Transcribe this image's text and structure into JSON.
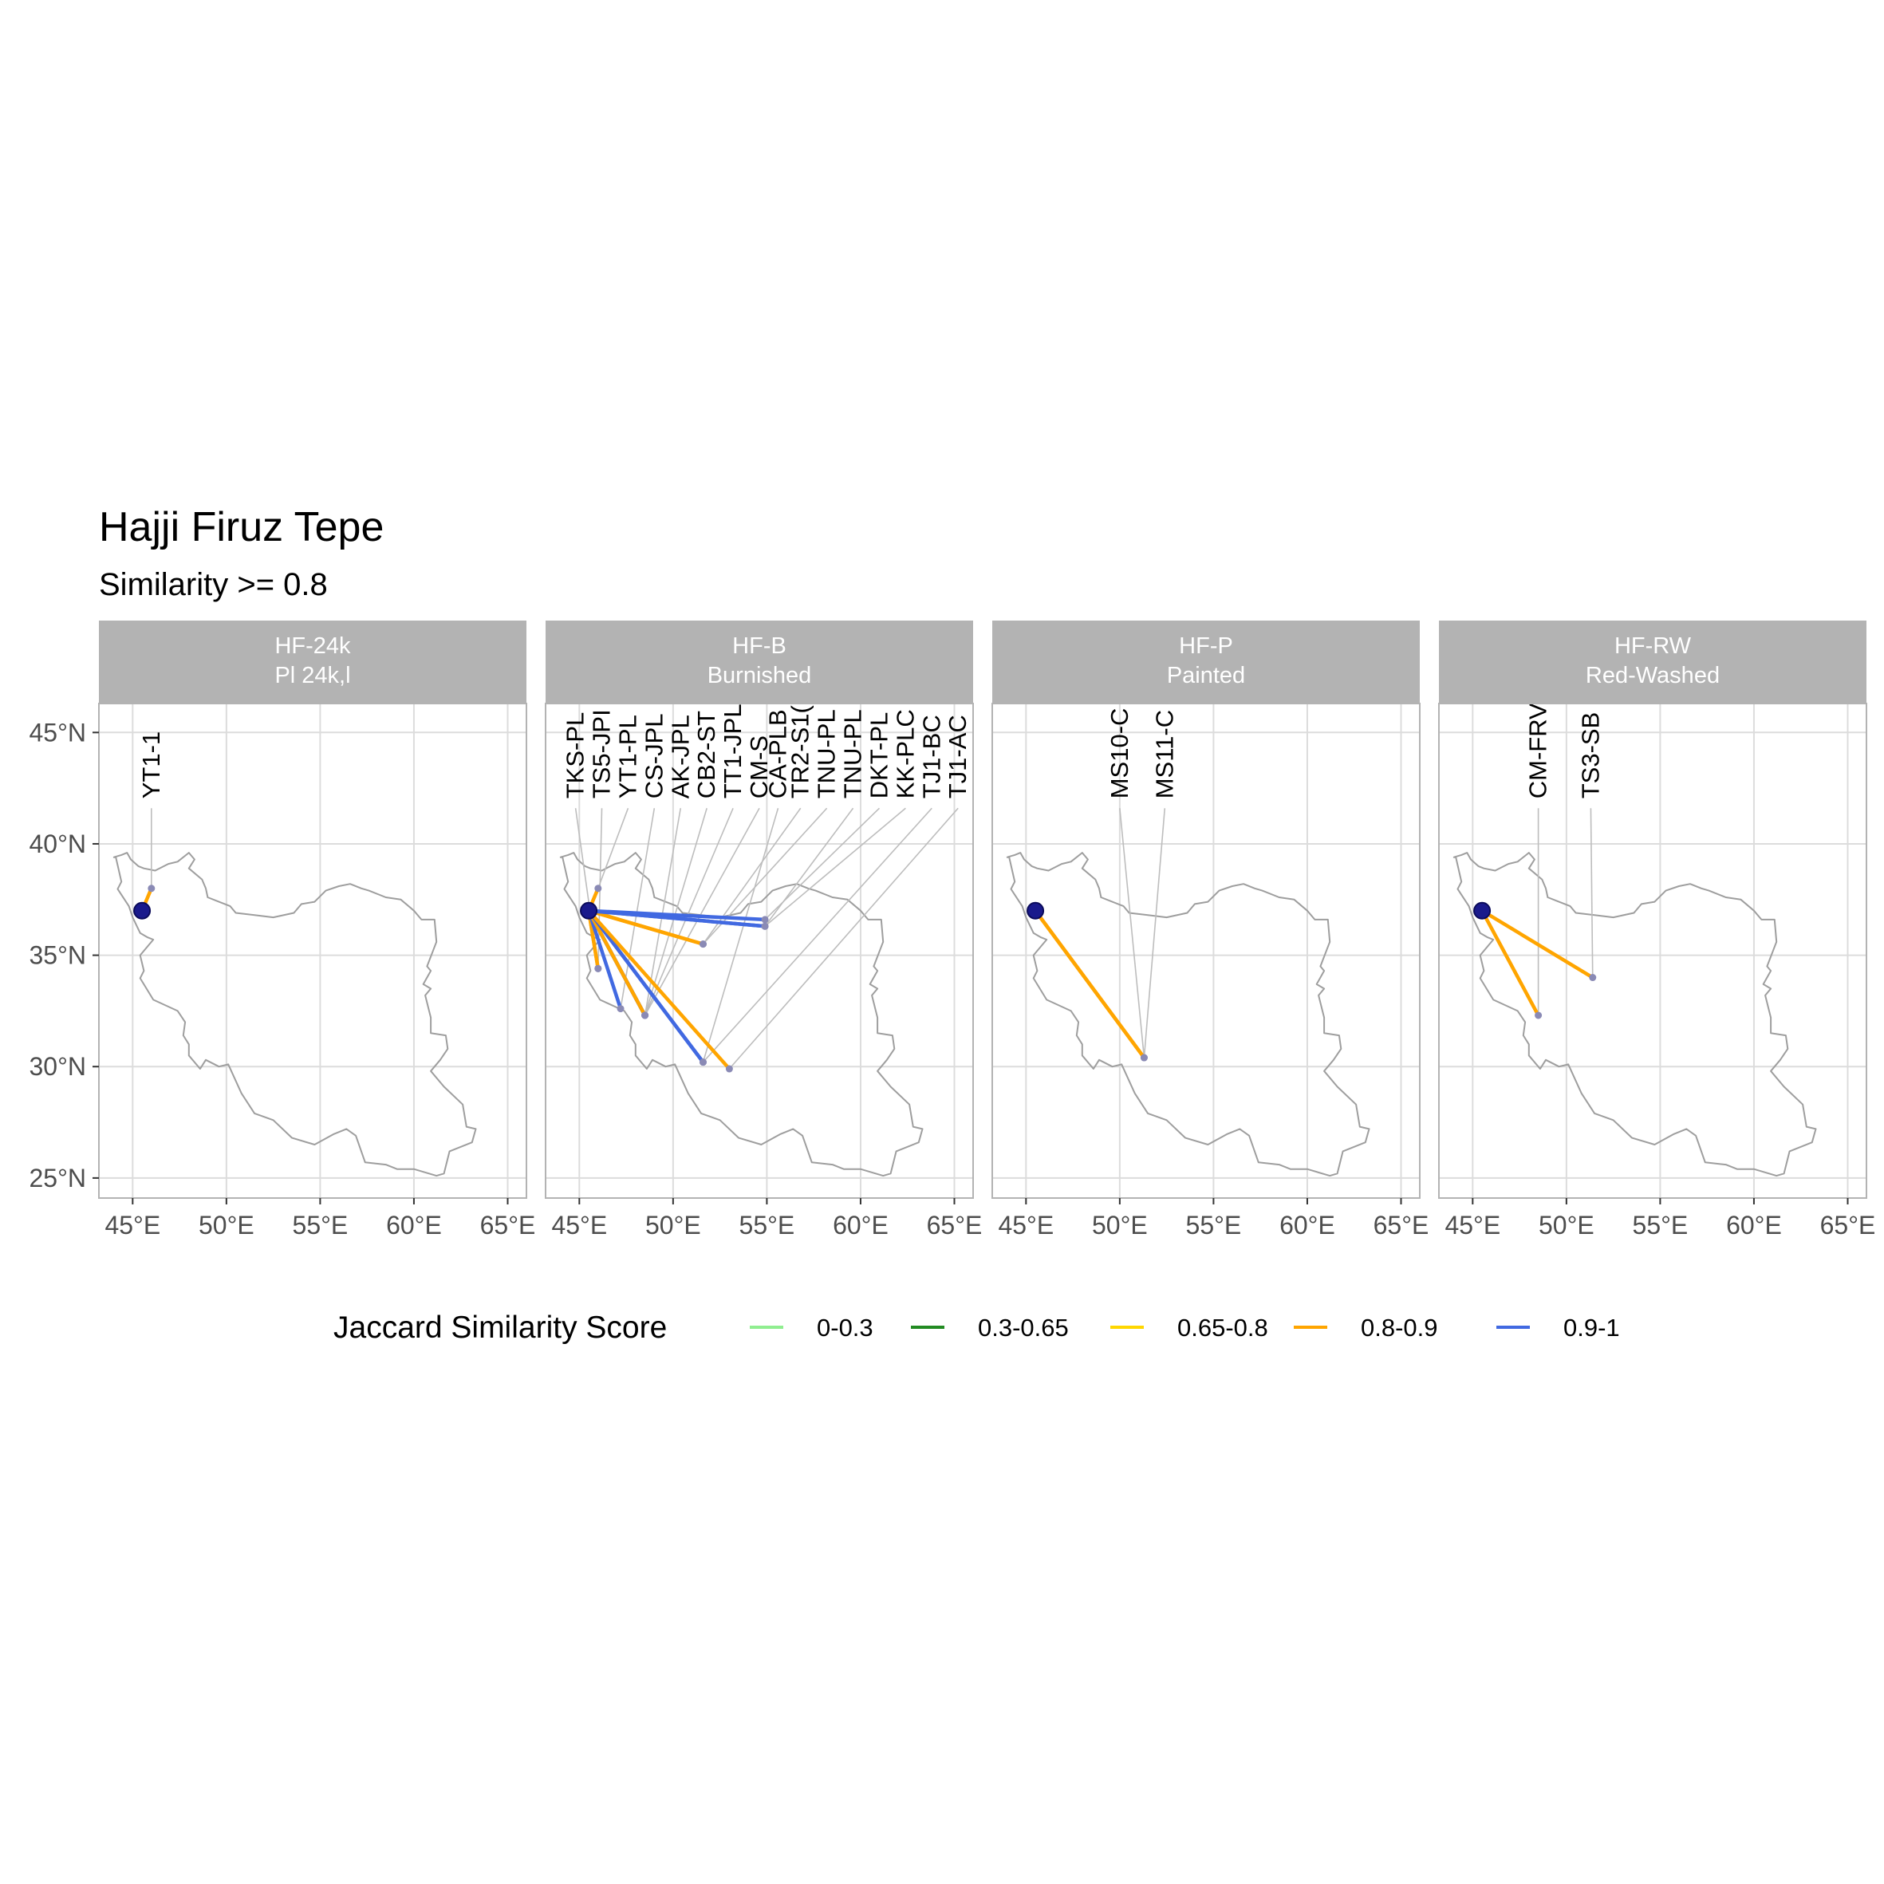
{
  "title": "Hajji Firuz Tepe",
  "subtitle": "Similarity >= 0.8",
  "colors": {
    "strip_bg": "#b3b3b3",
    "strip_text": "#ffffff",
    "grid": "#dcdcdc",
    "border": "#b3b3b3",
    "country_outline": "#9e9e9e",
    "origin_fill": "#1a1a8c",
    "site_point": "#8a8ab5",
    "label_leader": "#bdbdbd",
    "axis_text": "#4d4d4d",
    "text": "#000000"
  },
  "legend": {
    "title": "Jaccard Similarity Score",
    "items": [
      {
        "label": "0-0.3",
        "color": "#90ee90"
      },
      {
        "label": "0.3-0.65",
        "color": "#228b22"
      },
      {
        "label": "0.65-0.8",
        "color": "#ffd700"
      },
      {
        "label": "0.8-0.9",
        "color": "#ffa500"
      },
      {
        "label": "0.9-1",
        "color": "#4169e1"
      }
    ]
  },
  "chart_data": {
    "type": "map",
    "projection": "equirectangular",
    "xlim": [
      43.2,
      66.0
    ],
    "ylim": [
      24.1,
      46.3
    ],
    "x_breaks": [
      45,
      50,
      55,
      60,
      65
    ],
    "x_tick_labels": [
      "45°E",
      "50°E",
      "55°E",
      "60°E",
      "65°E"
    ],
    "y_breaks": [
      25,
      30,
      35,
      40,
      45
    ],
    "y_tick_labels": [
      "25°N",
      "30°N",
      "35°N",
      "40°N",
      "45°N"
    ],
    "grid": true,
    "origin": {
      "lon": 45.5,
      "lat": 37.0
    },
    "country_outline_lonlat": [
      [
        44.0,
        39.4
      ],
      [
        44.4,
        39.5
      ],
      [
        44.7,
        39.6
      ],
      [
        44.9,
        39.3
      ],
      [
        45.3,
        39.0
      ],
      [
        45.6,
        38.9
      ],
      [
        46.2,
        38.8
      ],
      [
        46.9,
        39.1
      ],
      [
        47.4,
        39.2
      ],
      [
        48.0,
        39.6
      ],
      [
        48.3,
        39.3
      ],
      [
        48.0,
        38.9
      ],
      [
        48.7,
        38.4
      ],
      [
        48.9,
        38.0
      ],
      [
        49.0,
        37.6
      ],
      [
        49.6,
        37.4
      ],
      [
        50.2,
        37.2
      ],
      [
        50.5,
        36.9
      ],
      [
        51.5,
        36.8
      ],
      [
        52.5,
        36.7
      ],
      [
        53.6,
        36.9
      ],
      [
        54.0,
        37.3
      ],
      [
        54.7,
        37.4
      ],
      [
        55.3,
        37.9
      ],
      [
        56.0,
        38.1
      ],
      [
        56.6,
        38.2
      ],
      [
        57.2,
        38.0
      ],
      [
        57.6,
        37.9
      ],
      [
        58.5,
        37.6
      ],
      [
        59.3,
        37.5
      ],
      [
        60.0,
        37.0
      ],
      [
        60.4,
        36.6
      ],
      [
        61.1,
        36.6
      ],
      [
        61.2,
        35.6
      ],
      [
        60.7,
        34.5
      ],
      [
        60.9,
        34.3
      ],
      [
        60.5,
        33.7
      ],
      [
        60.9,
        33.5
      ],
      [
        60.6,
        33.2
      ],
      [
        60.9,
        32.2
      ],
      [
        60.9,
        31.5
      ],
      [
        61.7,
        31.4
      ],
      [
        61.8,
        30.8
      ],
      [
        61.4,
        30.3
      ],
      [
        60.9,
        29.8
      ],
      [
        61.6,
        29.1
      ],
      [
        62.6,
        28.3
      ],
      [
        62.8,
        27.3
      ],
      [
        63.3,
        27.2
      ],
      [
        63.1,
        26.6
      ],
      [
        61.9,
        26.2
      ],
      [
        61.6,
        25.2
      ],
      [
        61.2,
        25.1
      ],
      [
        60.0,
        25.4
      ],
      [
        59.1,
        25.4
      ],
      [
        58.5,
        25.6
      ],
      [
        57.4,
        25.7
      ],
      [
        56.9,
        26.9
      ],
      [
        56.4,
        27.2
      ],
      [
        55.7,
        26.96
      ],
      [
        54.7,
        26.5
      ],
      [
        53.5,
        26.8
      ],
      [
        52.5,
        27.6
      ],
      [
        51.5,
        27.9
      ],
      [
        50.8,
        28.8
      ],
      [
        50.1,
        30.1
      ],
      [
        49.6,
        30.0
      ],
      [
        48.9,
        30.3
      ],
      [
        48.6,
        29.9
      ],
      [
        48.0,
        30.5
      ],
      [
        48.0,
        31.0
      ],
      [
        47.7,
        31.4
      ],
      [
        47.8,
        32.0
      ],
      [
        47.4,
        32.5
      ],
      [
        46.1,
        33.0
      ],
      [
        45.4,
        33.97
      ],
      [
        45.6,
        34.3
      ],
      [
        45.4,
        35.0
      ],
      [
        46.1,
        35.7
      ],
      [
        45.8,
        35.8
      ],
      [
        45.4,
        36.0
      ],
      [
        45.0,
        36.7
      ],
      [
        44.8,
        37.2
      ],
      [
        44.2,
        37.97
      ],
      [
        44.4,
        38.3
      ],
      [
        44.1,
        39.4
      ],
      [
        44.0,
        39.4
      ]
    ],
    "panels": [
      {
        "strip_line1": "HF-24k",
        "strip_line2": "Pl 24k,l",
        "connections": [
          {
            "label": "YT1-1",
            "lon": 46.0,
            "lat": 38.0,
            "score_class": "0.8-0.9",
            "label_lon": 46.0
          }
        ]
      },
      {
        "strip_line1": "HF-B",
        "strip_line2": "Burnished",
        "connections": [
          {
            "label": "TKS-PL",
            "lon": 46.0,
            "lat": 34.4,
            "score_class": "0.8-0.9",
            "label_lon": 44.8
          },
          {
            "label": "TS5-JPI",
            "lon": 46.0,
            "lat": 34.4,
            "score_class": "0.8-0.9",
            "label_lon": 46.2
          },
          {
            "label": "YT1-PL",
            "lon": 46.0,
            "lat": 38.0,
            "score_class": "0.8-0.9",
            "label_lon": 47.6
          },
          {
            "label": "CS-JPL",
            "lon": 47.2,
            "lat": 32.6,
            "score_class": "0.9-1",
            "label_lon": 49.0
          },
          {
            "label": "AK-JPL",
            "lon": 48.5,
            "lat": 32.3,
            "score_class": "0.8-0.9",
            "label_lon": 50.4
          },
          {
            "label": "CB2-ST",
            "lon": 48.5,
            "lat": 32.3,
            "score_class": "0.9-1",
            "label_lon": 51.8
          },
          {
            "label": "TT1-JPL",
            "lon": 48.5,
            "lat": 32.3,
            "score_class": "0.9-1",
            "label_lon": 53.2
          },
          {
            "label": "CM-S",
            "lon": 48.5,
            "lat": 32.3,
            "score_class": "0.8-0.9",
            "label_lon": 54.6
          },
          {
            "label": "CA-PLB",
            "lon": 51.6,
            "lat": 30.2,
            "score_class": "0.9-1",
            "label_lon": 55.6
          },
          {
            "label": "TR2-S1(",
            "lon": 51.6,
            "lat": 35.5,
            "score_class": "0.8-0.9",
            "label_lon": 56.8
          },
          {
            "label": "TNU-PL",
            "lon": 51.6,
            "lat": 35.5,
            "score_class": "0.8-0.9",
            "label_lon": 58.2
          },
          {
            "label": "TNU-PL",
            "lon": 54.9,
            "lat": 36.3,
            "score_class": "0.9-1",
            "label_lon": 59.6
          },
          {
            "label": "DKT-PL",
            "lon": 54.9,
            "lat": 36.6,
            "score_class": "0.9-1",
            "label_lon": 61.0
          },
          {
            "label": "KK-PLC",
            "lon": 54.9,
            "lat": 36.3,
            "score_class": "0.9-1",
            "label_lon": 62.4
          },
          {
            "label": "TJ1-BC",
            "lon": 51.6,
            "lat": 30.2,
            "score_class": "0.9-1",
            "label_lon": 63.8
          },
          {
            "label": "TJ1-AC",
            "lon": 53.0,
            "lat": 29.9,
            "score_class": "0.8-0.9",
            "label_lon": 65.2
          }
        ]
      },
      {
        "strip_line1": "HF-P",
        "strip_line2": "Painted",
        "connections": [
          {
            "label": "MS10-C",
            "lon": 51.3,
            "lat": 30.4,
            "score_class": "0.8-0.9",
            "label_lon": 50.0
          },
          {
            "label": "MS11-C",
            "lon": 51.3,
            "lat": 30.4,
            "score_class": "0.8-0.9",
            "label_lon": 52.4
          }
        ]
      },
      {
        "strip_line1": "HF-RW",
        "strip_line2": "Red-Washed",
        "connections": [
          {
            "label": "CM-FRV",
            "lon": 48.5,
            "lat": 32.3,
            "score_class": "0.8-0.9",
            "label_lon": 48.5
          },
          {
            "label": "TS3-SB",
            "lon": 51.4,
            "lat": 34.0,
            "score_class": "0.8-0.9",
            "label_lon": 51.3
          }
        ]
      }
    ]
  }
}
